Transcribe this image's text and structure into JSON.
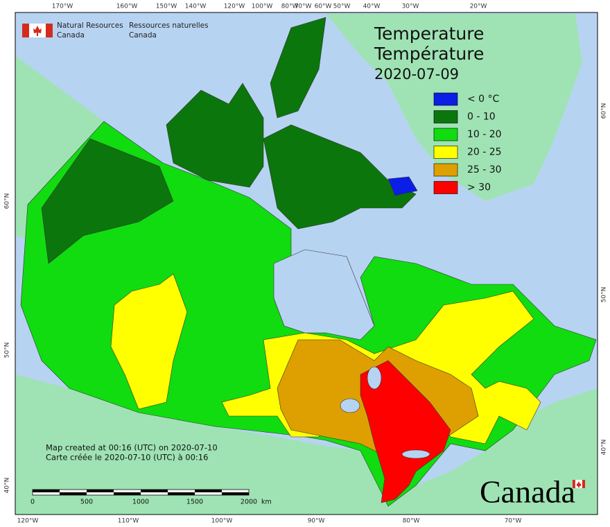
{
  "graticule": {
    "top": [
      "170°W",
      "160°W",
      "150°W",
      "140°W",
      "120°W",
      "100°W",
      "80°W",
      "70°W",
      "60°W",
      "50°W",
      "40°W",
      "30°W",
      "20°W"
    ],
    "bottom": [
      "120°W",
      "110°W",
      "100°W",
      "90°W",
      "80°W",
      "70°W"
    ],
    "left": [
      "60°N",
      "50°N",
      "40°N"
    ],
    "right": [
      "60°N",
      "50°N",
      "40°N"
    ]
  },
  "agency": {
    "en": [
      "Natural Resources",
      "Canada"
    ],
    "fr": [
      "Ressources naturelles",
      "Canada"
    ]
  },
  "title": [
    "Temperature",
    "Température",
    "2020-07-09"
  ],
  "legend": [
    {
      "label": "< 0 °C",
      "color": "#0a1ee6"
    },
    {
      "label": "0 - 10",
      "color": "#0b760b"
    },
    {
      "label": "10 - 20",
      "color": "#10dc10"
    },
    {
      "label": "20 - 25",
      "color": "#ffff00"
    },
    {
      "label": "25 - 30",
      "color": "#dea000"
    },
    {
      "label": "> 30",
      "color": "#ff0000"
    }
  ],
  "footer": [
    "Map created at 00:16 (UTC) on 2020-07-10",
    "Carte créée le 2020-07-10 (UTC) à 00:16"
  ],
  "scale": {
    "ticks": [
      "0",
      "500",
      "1000",
      "1500",
      "2000"
    ],
    "unit": "km"
  },
  "wordmark": "Canada"
}
